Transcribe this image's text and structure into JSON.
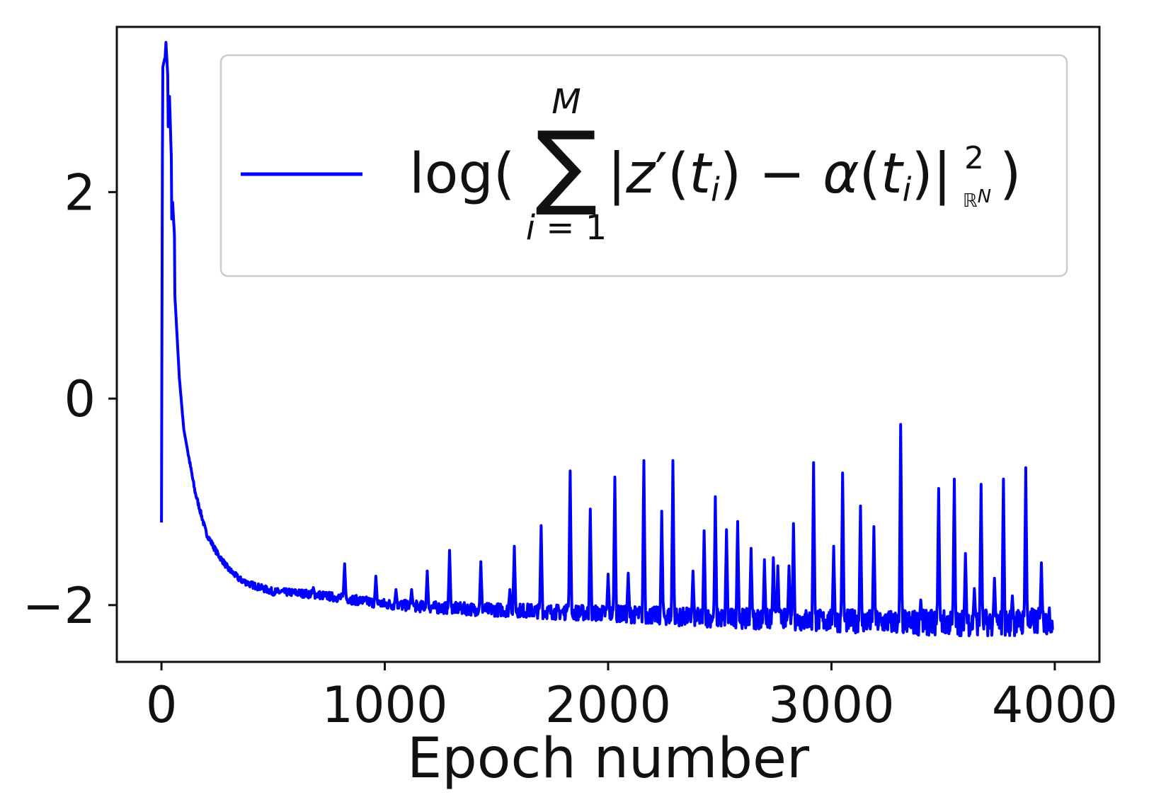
{
  "chart_data": {
    "type": "line",
    "xlabel": "Epoch number",
    "ylabel": "",
    "title": "",
    "xlim": [
      -200,
      4200
    ],
    "ylim": [
      -2.55,
      3.6
    ],
    "xticks": [
      0,
      1000,
      2000,
      3000,
      4000
    ],
    "xtick_labels": [
      "0",
      "1000",
      "2000",
      "3000",
      "4000"
    ],
    "yticks": [
      -2,
      0,
      2
    ],
    "ytick_labels": [
      "−2",
      "0",
      "2"
    ],
    "grid": false,
    "legend_position": "top-right",
    "series": [
      {
        "name": "log( Σ_{i=1}^{M} |z′(t_i) − α(t_i)|²_{ℝ^N} )",
        "color": "#0000ff",
        "baseline": [
          [
            0,
            -1.2
          ],
          [
            5,
            3.2
          ],
          [
            15,
            3.3
          ],
          [
            25,
            2.8
          ],
          [
            40,
            2.0
          ],
          [
            60,
            1.0
          ],
          [
            80,
            0.2
          ],
          [
            100,
            -0.3
          ],
          [
            150,
            -0.9
          ],
          [
            200,
            -1.3
          ],
          [
            250,
            -1.5
          ],
          [
            300,
            -1.65
          ],
          [
            350,
            -1.75
          ],
          [
            400,
            -1.8
          ],
          [
            500,
            -1.87
          ],
          [
            600,
            -1.88
          ],
          [
            700,
            -1.9
          ],
          [
            800,
            -1.93
          ],
          [
            900,
            -1.96
          ],
          [
            1000,
            -1.99
          ],
          [
            1200,
            -2.02
          ],
          [
            1400,
            -2.04
          ],
          [
            1600,
            -2.05
          ],
          [
            1800,
            -2.07
          ],
          [
            2000,
            -2.08
          ],
          [
            2200,
            -2.1
          ],
          [
            2400,
            -2.12
          ],
          [
            2600,
            -2.13
          ],
          [
            2800,
            -2.14
          ],
          [
            3000,
            -2.15
          ],
          [
            3200,
            -2.16
          ],
          [
            3400,
            -2.17
          ],
          [
            3600,
            -2.17
          ],
          [
            3800,
            -2.17
          ],
          [
            3990,
            -2.15
          ]
        ],
        "spikes": [
          [
            20,
            3.45
          ],
          [
            35,
            3.0
          ],
          [
            50,
            1.9
          ],
          [
            680,
            -1.83
          ],
          [
            820,
            -1.6
          ],
          [
            960,
            -1.72
          ],
          [
            1050,
            -1.85
          ],
          [
            1120,
            -1.85
          ],
          [
            1190,
            -1.67
          ],
          [
            1290,
            -1.47
          ],
          [
            1430,
            -1.58
          ],
          [
            1560,
            -1.85
          ],
          [
            1580,
            -1.43
          ],
          [
            1700,
            -1.23
          ],
          [
            1820,
            -1.99
          ],
          [
            1830,
            -0.7
          ],
          [
            1920,
            -1.07
          ],
          [
            2000,
            -1.7
          ],
          [
            2030,
            -0.76
          ],
          [
            2090,
            -1.69
          ],
          [
            2160,
            -0.6
          ],
          [
            2240,
            -1.09
          ],
          [
            2290,
            -0.6
          ],
          [
            2380,
            -1.67
          ],
          [
            2430,
            -1.28
          ],
          [
            2480,
            -0.95
          ],
          [
            2530,
            -1.27
          ],
          [
            2580,
            -1.19
          ],
          [
            2640,
            -1.45
          ],
          [
            2700,
            -1.56
          ],
          [
            2740,
            -1.54
          ],
          [
            2760,
            -1.62
          ],
          [
            2810,
            -1.62
          ],
          [
            2830,
            -1.21
          ],
          [
            2920,
            -0.62
          ],
          [
            3010,
            -1.43
          ],
          [
            3050,
            -0.72
          ],
          [
            3130,
            -1.04
          ],
          [
            3190,
            -1.24
          ],
          [
            3310,
            -0.25
          ],
          [
            3400,
            -1.95
          ],
          [
            3480,
            -0.87
          ],
          [
            3550,
            -0.78
          ],
          [
            3600,
            -1.5
          ],
          [
            3640,
            -1.84
          ],
          [
            3670,
            -0.83
          ],
          [
            3730,
            -1.74
          ],
          [
            3770,
            -0.78
          ],
          [
            3810,
            -1.91
          ],
          [
            3870,
            -0.67
          ],
          [
            3940,
            -1.59
          ]
        ]
      }
    ]
  }
}
